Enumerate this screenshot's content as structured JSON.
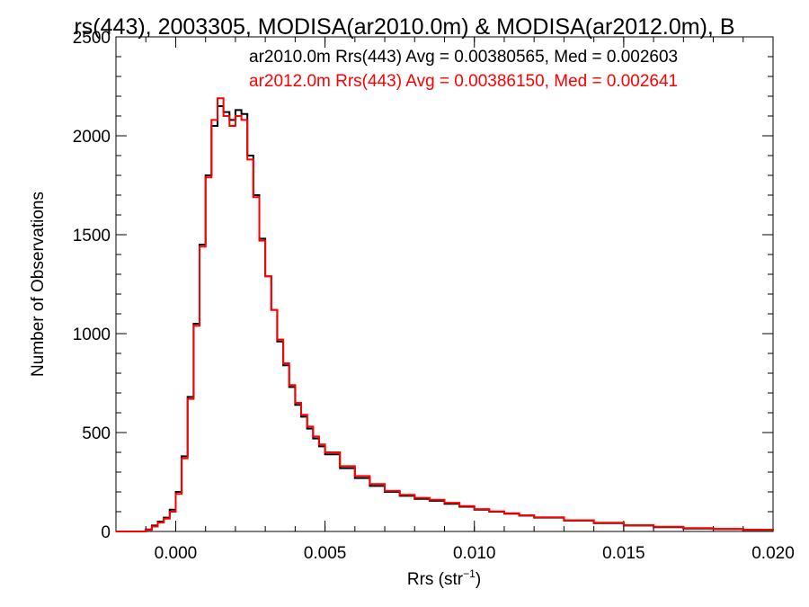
{
  "chart_data": {
    "type": "line",
    "title": "rs(443), 2003305, MODISA(ar2010.0m) & MODISA(ar2012.0m), B",
    "xlabel": "Rrs (str",
    "xlabel_sup": "−1",
    "xlabel_end": ")",
    "ylabel": "Number of Observations",
    "xlim": [
      -0.002,
      0.02
    ],
    "ylim": [
      0,
      2500
    ],
    "xticks": [
      0.0,
      0.005,
      0.01,
      0.015,
      0.02
    ],
    "xtick_labels": [
      "0.000",
      "0.005",
      "0.010",
      "0.015",
      "0.020"
    ],
    "yticks": [
      0,
      500,
      1000,
      1500,
      2000,
      2500
    ],
    "ytick_labels": [
      "0",
      "500",
      "1000",
      "1500",
      "2000",
      "2500"
    ],
    "annotations": [
      {
        "text": "ar2010.0m Rrs(443) Avg = 0.00380565, Med = 0.002603",
        "color": "#000000"
      },
      {
        "text": "ar2012.0m Rrs(443) Avg = 0.00386150, Med = 0.002641",
        "color": "#ff0000"
      }
    ],
    "series": [
      {
        "color": "#000000",
        "x": [
          -0.002,
          -0.0015,
          -0.001,
          -0.0008,
          -0.0006,
          -0.0004,
          -0.0002,
          0.0,
          0.0002,
          0.0004,
          0.0006,
          0.0008,
          0.001,
          0.0012,
          0.0014,
          0.0016,
          0.0018,
          0.002,
          0.0022,
          0.0024,
          0.0026,
          0.0028,
          0.003,
          0.0032,
          0.0034,
          0.0036,
          0.0038,
          0.004,
          0.0042,
          0.0044,
          0.0046,
          0.0048,
          0.005,
          0.0055,
          0.006,
          0.0065,
          0.007,
          0.0075,
          0.008,
          0.0085,
          0.009,
          0.0095,
          0.01,
          0.0105,
          0.011,
          0.0115,
          0.012,
          0.013,
          0.014,
          0.015,
          0.016,
          0.017,
          0.018,
          0.019,
          0.02
        ],
        "y": [
          0,
          0,
          10,
          30,
          50,
          70,
          110,
          200,
          380,
          680,
          1050,
          1450,
          1800,
          2050,
          2150,
          2120,
          2080,
          2130,
          2110,
          1900,
          1700,
          1480,
          1290,
          1120,
          960,
          840,
          730,
          640,
          580,
          520,
          470,
          430,
          390,
          320,
          270,
          230,
          200,
          180,
          165,
          155,
          140,
          125,
          110,
          100,
          90,
          80,
          70,
          55,
          42,
          30,
          22,
          15,
          12,
          8,
          5
        ]
      },
      {
        "color": "#ff0000",
        "x": [
          -0.002,
          -0.0015,
          -0.001,
          -0.0008,
          -0.0006,
          -0.0004,
          -0.0002,
          0.0,
          0.0002,
          0.0004,
          0.0006,
          0.0008,
          0.001,
          0.0012,
          0.0014,
          0.0016,
          0.0018,
          0.002,
          0.0022,
          0.0024,
          0.0026,
          0.0028,
          0.003,
          0.0032,
          0.0034,
          0.0036,
          0.0038,
          0.004,
          0.0042,
          0.0044,
          0.0046,
          0.0048,
          0.005,
          0.0055,
          0.006,
          0.0065,
          0.007,
          0.0075,
          0.008,
          0.0085,
          0.009,
          0.0095,
          0.01,
          0.0105,
          0.011,
          0.0115,
          0.012,
          0.013,
          0.014,
          0.015,
          0.016,
          0.017,
          0.018,
          0.019,
          0.02
        ],
        "y": [
          0,
          0,
          8,
          25,
          45,
          65,
          100,
          190,
          370,
          670,
          1040,
          1440,
          1790,
          2080,
          2190,
          2100,
          2050,
          2100,
          2080,
          1880,
          1690,
          1470,
          1290,
          1120,
          970,
          850,
          740,
          650,
          590,
          530,
          480,
          440,
          400,
          330,
          280,
          240,
          205,
          185,
          170,
          160,
          145,
          128,
          113,
          102,
          92,
          82,
          72,
          57,
          44,
          32,
          24,
          17,
          13,
          9,
          6
        ]
      }
    ]
  }
}
